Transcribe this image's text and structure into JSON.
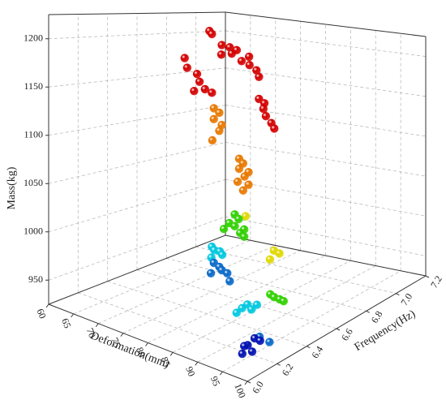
{
  "chart_data": {
    "type": "scatter3d",
    "xlabel": "Deformation(mm)",
    "ylabel": "Frequency(Hz)",
    "zlabel": "Mass(kg)",
    "xlim": [
      60,
      100
    ],
    "xticks": [
      60,
      65,
      70,
      75,
      80,
      85,
      90,
      95,
      100
    ],
    "ylim": [
      6,
      7.2
    ],
    "yticks": [
      {
        "value": 6,
        "label": "6.0"
      },
      6.2,
      6.4,
      6.6,
      6.8,
      {
        "value": 7,
        "label": "7.0"
      },
      7.2
    ],
    "zlim": [
      925,
      1225
    ],
    "zticks": [
      950,
      1000,
      1050,
      1100,
      1150,
      1200
    ],
    "grid": true,
    "series": [
      {
        "color": "#d40000",
        "x": [
          76,
          76.5,
          77,
          78,
          78.5,
          79,
          77.5,
          79.5,
          78,
          79,
          79.5,
          80,
          74,
          74.5,
          75,
          75.5,
          76,
          75,
          76.5,
          80,
          80.5,
          80,
          80.5,
          81,
          81
        ],
        "y": [
          6.55,
          6.55,
          6.6,
          6.62,
          6.65,
          6.6,
          6.58,
          6.7,
          6.7,
          6.72,
          6.75,
          6.75,
          6.45,
          6.45,
          6.5,
          6.5,
          6.52,
          6.48,
          6.55,
          6.75,
          6.77,
          6.78,
          6.78,
          6.8,
          6.82
        ],
        "z": [
          1215,
          1212,
          1200,
          1198,
          1195,
          1192,
          1190,
          1188,
          1182,
          1178,
          1172,
          1165,
          1185,
          1175,
          1168,
          1160,
          1152,
          1150,
          1148,
          1140,
          1135,
          1128,
          1120,
          1112,
          1105
        ]
      },
      {
        "color": "#e87800",
        "x": [
          76,
          76.5,
          76,
          77,
          76.5,
          76,
          79,
          79.5,
          79,
          80,
          79.5,
          79,
          80,
          79.5
        ],
        "y": [
          6.58,
          6.6,
          6.58,
          6.6,
          6.6,
          6.57,
          6.65,
          6.66,
          6.65,
          6.68,
          6.67,
          6.64,
          6.68,
          6.66
        ],
        "z": [
          1130,
          1125,
          1118,
          1112,
          1105,
          1095,
          1075,
          1070,
          1064,
          1060,
          1055,
          1050,
          1046,
          1040
        ]
      },
      {
        "color": "#e0d800",
        "x": [
          80,
          83,
          83.5,
          82.5
        ],
        "y": [
          6.66,
          6.75,
          6.77,
          6.74
        ],
        "z": [
          1012,
          972,
          968,
          962
        ]
      },
      {
        "color": "#30d000",
        "x": [
          79,
          79.5,
          78.5,
          79,
          80,
          79.5,
          78,
          80,
          89,
          89.5,
          90,
          88.5
        ],
        "y": [
          6.62,
          6.63,
          6.6,
          6.62,
          6.65,
          6.64,
          6.58,
          6.65,
          6.55,
          6.57,
          6.58,
          6.54
        ],
        "z": [
          1015,
          1010,
          1006,
          1002,
          998,
          994,
          1000,
          990,
          945,
          942,
          940,
          948
        ]
      },
      {
        "color": "#00c8e0",
        "x": [
          75,
          75.5,
          76,
          76.5,
          75.5,
          87,
          87.5,
          88,
          86.5,
          88.5
        ],
        "y": [
          6.6,
          6.6,
          6.62,
          6.62,
          6.58,
          6.4,
          6.42,
          6.43,
          6.38,
          6.45
        ],
        "z": [
          975,
          972,
          970,
          967,
          965,
          942,
          945,
          940,
          938,
          944
        ]
      },
      {
        "color": "#0868c8",
        "x": [
          76,
          76.5,
          77,
          77.5,
          76,
          78,
          95,
          95.5
        ],
        "y": [
          6.58,
          6.6,
          6.6,
          6.62,
          6.56,
          6.62,
          6.25,
          6.3
        ],
        "z": [
          960,
          955,
          952,
          948,
          950,
          940,
          938,
          930
        ]
      },
      {
        "color": "#0010b0",
        "x": [
          94,
          94.5,
          93.5,
          95,
          94,
          94.5
        ],
        "y": [
          6.25,
          6.27,
          6.22,
          6.2,
          6.18,
          6.15
        ],
        "z": [
          935,
          932,
          930,
          928,
          933,
          929
        ]
      }
    ]
  }
}
